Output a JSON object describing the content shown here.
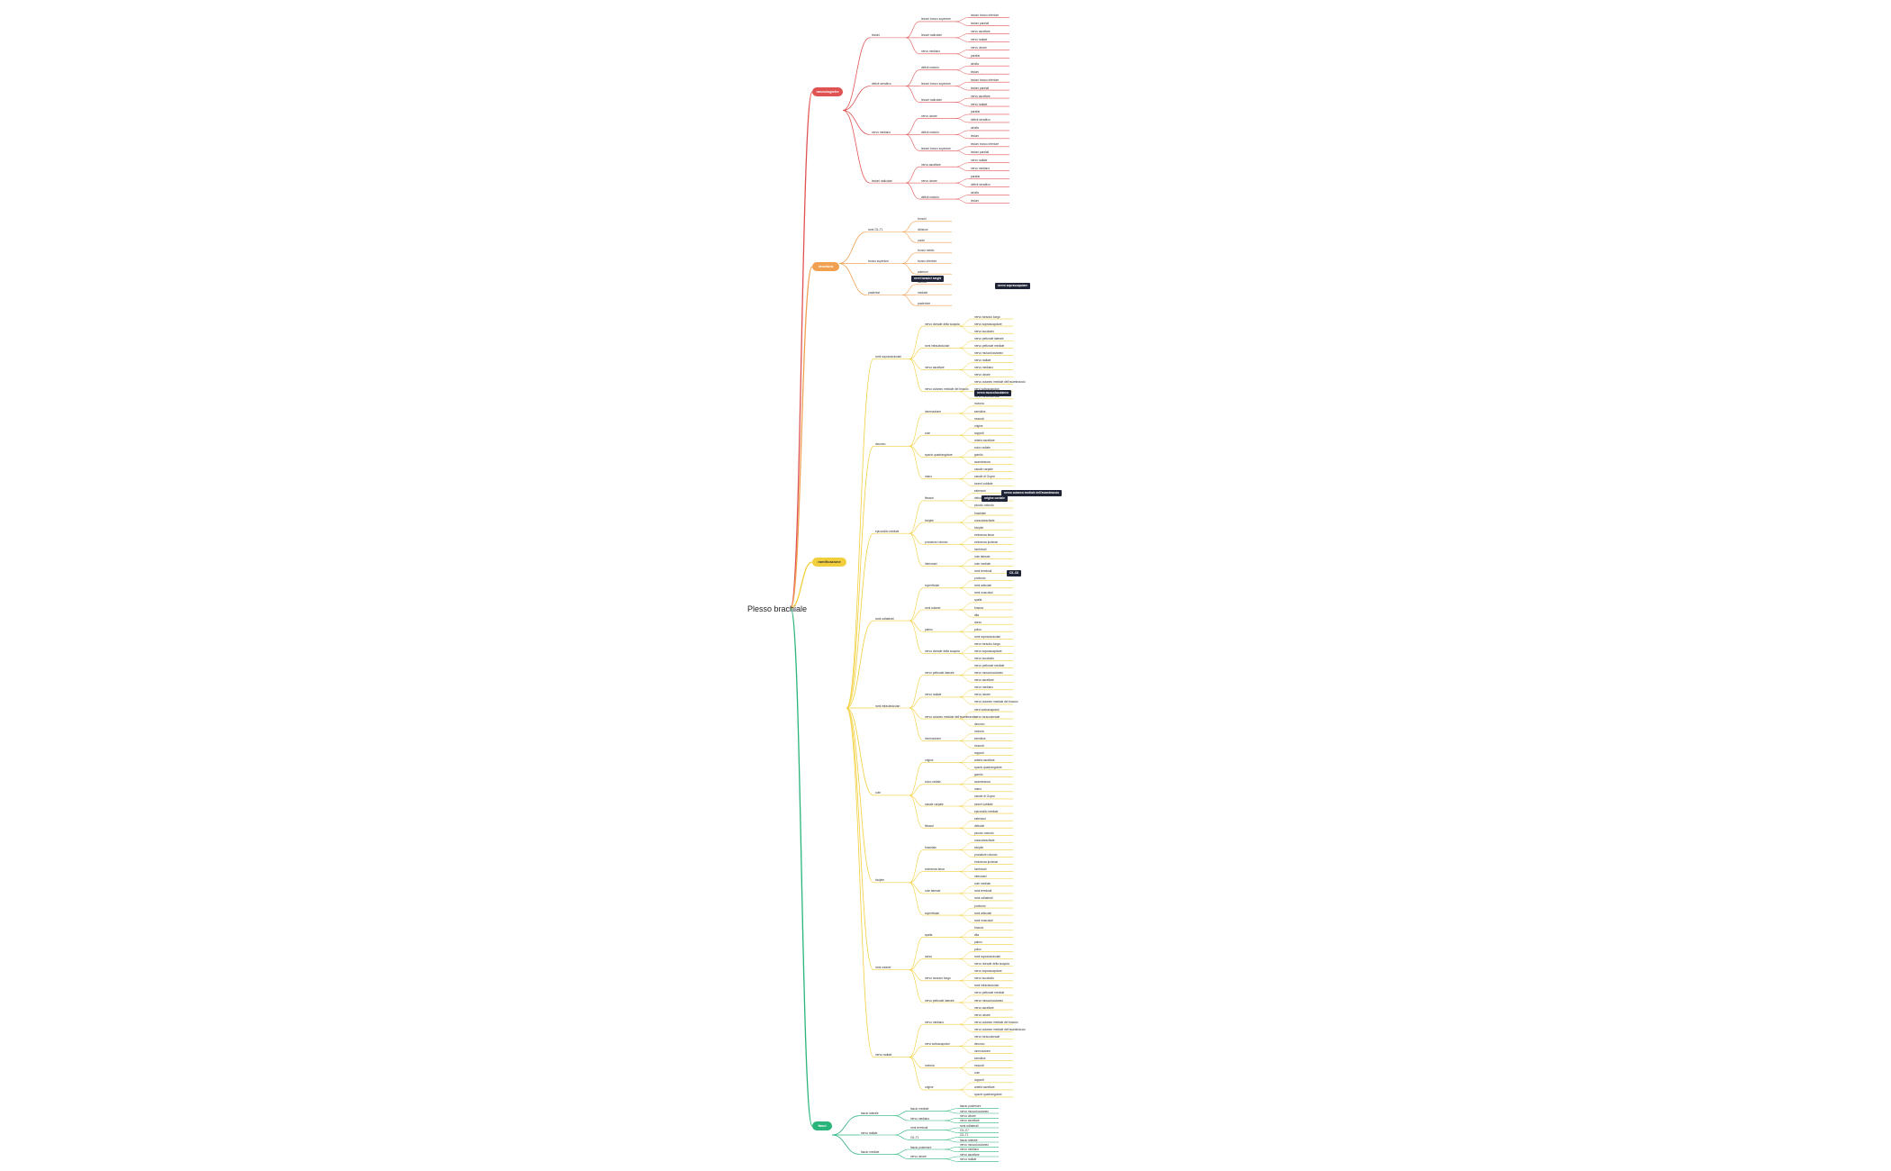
{
  "root": {
    "title": "Plesso brachiale"
  },
  "branches": [
    {
      "key": "red",
      "label": "neurologiche",
      "color": "#e05252",
      "text": "#ffffff"
    },
    {
      "key": "orange",
      "label": "struttura",
      "color": "#f0a050",
      "text": "#ffffff"
    },
    {
      "key": "yellow",
      "label": "ramificazione",
      "color": "#f2cf3a",
      "text": "#333333"
    },
    {
      "key": "green",
      "label": "fasci",
      "color": "#28b47a",
      "text": "#ffffff"
    }
  ],
  "red_nodes": [
    "lesioni",
    "lesioni tronco superiore",
    "lesioni tronco inferiore",
    "lesioni parziali",
    "lesioni radicolari",
    "nervo ascellare",
    "nervo radiale",
    "nervo mediano",
    "nervo ulnare",
    "paralisi",
    "deficit sensitivo",
    "deficit motorio",
    "atrofia"
  ],
  "orange_nodes": [
    "rami C5–T1",
    "tronchi",
    "divisioni",
    "corde",
    "tronco superiore",
    "tronco medio",
    "tronco inferiore",
    "anteriori",
    "posteriori",
    "laterale",
    "mediale",
    "posteriore"
  ],
  "dark_tags": [
    "nervi toracici lunghi",
    "nervo soprascapolare",
    "nervo muscolocutaneo",
    "origine cordale",
    "nervo cutaneo mediale dell'avambraccio",
    "C5–C6"
  ],
  "yellow_nodes": [
    "rami sopraclavicolari",
    "nervo dorsale della scapola",
    "nervo toracico lungo",
    "nervo soprascapolare",
    "nervo succlavio",
    "rami infraclavicolari",
    "nervo pettorale laterale",
    "nervo pettorale mediale",
    "nervo muscolocutaneo",
    "nervo ascellare",
    "nervo radiale",
    "nervo mediano",
    "nervo ulnare",
    "nervo cutaneo mediale del braccio",
    "nervo cutaneo mediale dell'avambraccio",
    "nervi sottoscapolari",
    "nervo toracodorsale",
    "decorso",
    "innervazione",
    "motoria",
    "sensitiva",
    "muscoli",
    "cute",
    "origine",
    "rapporti",
    "arteria ascellare",
    "spazio quadrangolare",
    "solco radiale",
    "gomito",
    "avambraccio",
    "mano",
    "canale carpale",
    "canale di Guyon",
    "tunnel cubitale",
    "epicondilo mediale",
    "flessori",
    "estensori",
    "deltoide",
    "piccolo rotondo",
    "bicipite",
    "brachiale",
    "coracobrachiale",
    "tricipite",
    "pronatore rotondo",
    "eminenza tenar",
    "eminenza ipotenar",
    "lombricali",
    "interossei",
    "cute laterale",
    "cute mediale",
    "rami terminali",
    "rami collaterali",
    "superficiale",
    "profondo",
    "rami articolari",
    "rami muscolari",
    "rami cutanei",
    "spalla",
    "braccio",
    "dita",
    "palmo",
    "dorso",
    "polso"
  ],
  "green_nodes": [
    "fascio laterale",
    "fascio mediale",
    "fascio posteriore",
    "nervo muscolocutaneo",
    "nervo mediano",
    "nervo ulnare",
    "nervo ascellare",
    "nervo radiale",
    "rami terminali",
    "rami collaterali",
    "C5–C7",
    "C8–T1",
    "C5–T1"
  ]
}
